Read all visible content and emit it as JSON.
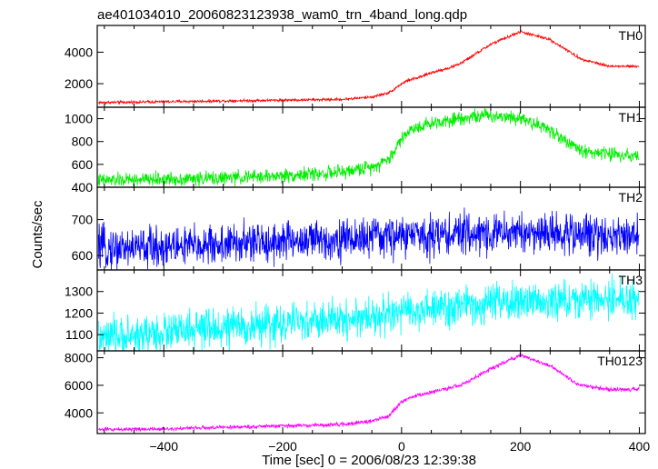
{
  "figure_title": "ae401034010_20060823123938_wam0_trn_4band_long.qdp",
  "ylabel": "Counts/sec",
  "xlabel": "Time [sec] 0 = 2006/08/23 12:39:38",
  "chart_data": {
    "type": "line",
    "title": "ae401034010_20060823123938_wam0_trn_4band_long.qdp",
    "xlabel": "Time [sec] 0 = 2006/08/23 12:39:38",
    "ylabel": "Counts/sec",
    "xlim": [
      -512,
      410
    ],
    "x_ticks": [
      -400,
      -200,
      0,
      200,
      400
    ],
    "grid": false,
    "panels": [
      {
        "name": "TH0",
        "color": "#ff0000",
        "ylim": [
          500,
          5700
        ],
        "yticks": [
          2000,
          4000
        ],
        "noise": 45,
        "x": [
          -500,
          -400,
          -300,
          -200,
          -100,
          -50,
          -20,
          0,
          10,
          30,
          50,
          80,
          100,
          150,
          200,
          250,
          300,
          350,
          400
        ],
        "y": [
          800,
          850,
          900,
          950,
          1000,
          1150,
          1450,
          2000,
          2200,
          2400,
          2700,
          3000,
          3300,
          4500,
          5300,
          4800,
          3600,
          3100,
          3100
        ]
      },
      {
        "name": "TH1",
        "color": "#00ee00",
        "ylim": [
          400,
          1100
        ],
        "yticks": [
          400,
          600,
          800,
          1000
        ],
        "noise": 30,
        "x": [
          -500,
          -400,
          -300,
          -200,
          -100,
          -50,
          -20,
          0,
          20,
          50,
          100,
          150,
          200,
          250,
          300,
          350,
          400
        ],
        "y": [
          460,
          470,
          480,
          500,
          530,
          580,
          650,
          830,
          920,
          960,
          1010,
          1030,
          1010,
          900,
          720,
          690,
          680
        ]
      },
      {
        "name": "TH2",
        "color": "#0000ff",
        "ylim": [
          560,
          790
        ],
        "yticks": [
          600,
          700
        ],
        "noise": 28,
        "x": [
          -500,
          -400,
          -300,
          -200,
          -100,
          0,
          100,
          200,
          300,
          400
        ],
        "y": [
          620,
          625,
          630,
          640,
          645,
          655,
          660,
          665,
          660,
          655
        ]
      },
      {
        "name": "TH3",
        "color": "#00ffff",
        "ylim": [
          1025,
          1400
        ],
        "yticks": [
          1100,
          1200,
          1300
        ],
        "noise": 45,
        "x": [
          -500,
          -400,
          -300,
          -200,
          -100,
          0,
          100,
          200,
          300,
          400
        ],
        "y": [
          1080,
          1110,
          1130,
          1150,
          1170,
          1200,
          1230,
          1250,
          1260,
          1270
        ]
      },
      {
        "name": "TH0123",
        "color": "#ff00ff",
        "ylim": [
          2500,
          8500
        ],
        "yticks": [
          4000,
          6000,
          8000
        ],
        "noise": 70,
        "x": [
          -500,
          -400,
          -300,
          -200,
          -100,
          -50,
          -20,
          0,
          20,
          50,
          100,
          150,
          200,
          250,
          300,
          350,
          400
        ],
        "y": [
          2800,
          2850,
          2950,
          3050,
          3150,
          3400,
          3800,
          4800,
          5200,
          5500,
          6000,
          7200,
          8200,
          7400,
          6000,
          5700,
          5700
        ]
      }
    ]
  }
}
